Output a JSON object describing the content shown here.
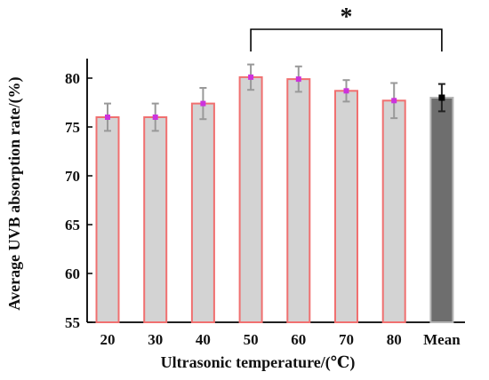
{
  "chart_data": {
    "type": "bar",
    "categories": [
      "20",
      "30",
      "40",
      "50",
      "60",
      "70",
      "80",
      "Mean"
    ],
    "values": [
      76.0,
      76.0,
      77.4,
      80.1,
      79.9,
      78.7,
      77.7,
      78.0
    ],
    "errors": [
      1.4,
      1.4,
      1.6,
      1.3,
      1.3,
      1.1,
      1.8,
      1.4
    ],
    "title": "",
    "xlabel": "Ultrasonic temperature/(℃)",
    "ylabel": "Average UVB absorption rate/(%)",
    "ylim": [
      55,
      82
    ],
    "yticks": [
      55,
      60,
      65,
      70,
      75,
      80
    ],
    "grid": false,
    "significance": {
      "label": "*",
      "from_category": "50",
      "to_category": "Mean"
    },
    "colors": {
      "bar_fill": "#d3d3d3",
      "bar_edge": "#f07070",
      "mean_fill": "#6e6e6e",
      "mean_edge": "#b5b5b5",
      "marker": "#cc33dd",
      "mean_marker": "#000000",
      "error_bar": "#999999",
      "mean_error_bar": "#222222"
    }
  }
}
